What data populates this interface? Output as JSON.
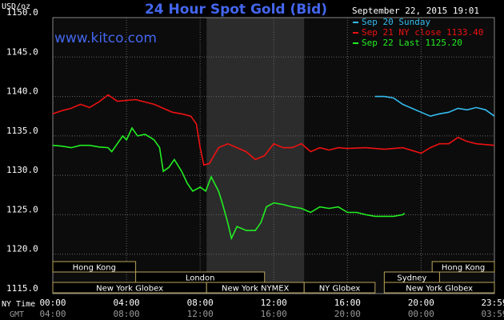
{
  "chart_data": {
    "type": "line",
    "title": "24 Hour Spot Gold (Bid)",
    "watermark": "www.kitco.com",
    "timestamp": "September 22, 2015 19:01",
    "y_label": "USD/oz",
    "x_label": "NY Time",
    "x2_label": "GMT",
    "xlim": [
      0,
      23.98
    ],
    "ylim": [
      1115,
      1150
    ],
    "yticks": [
      {
        "value": 1115,
        "label": "1115.0"
      },
      {
        "value": 1120,
        "label": "1120.0"
      },
      {
        "value": 1125,
        "label": "1125.0"
      },
      {
        "value": 1130,
        "label": "1130.0"
      },
      {
        "value": 1135,
        "label": "1135.0"
      },
      {
        "value": 1140,
        "label": "1140.0"
      },
      {
        "value": 1145,
        "label": "1145.0"
      },
      {
        "value": 1150,
        "label": "1150.0"
      }
    ],
    "xticks": [
      {
        "value": 0,
        "label": "00:00"
      },
      {
        "value": 4,
        "label": "04:00"
      },
      {
        "value": 8,
        "label": "08:00"
      },
      {
        "value": 12,
        "label": "12:00"
      },
      {
        "value": 16,
        "label": "16:00"
      },
      {
        "value": 20,
        "label": "20:00"
      },
      {
        "value": 23.98,
        "label": "23:59"
      }
    ],
    "x2ticks": [
      {
        "value": 0,
        "label": "04:00"
      },
      {
        "value": 4,
        "label": "08:00"
      },
      {
        "value": 8,
        "label": "12:00"
      },
      {
        "value": 12,
        "label": "16:00"
      },
      {
        "value": 16,
        "label": "20:00"
      },
      {
        "value": 20,
        "label": "00:00"
      },
      {
        "value": 23.98,
        "label": "03:59"
      }
    ],
    "grid": true,
    "session_rows": [
      [
        {
          "label": "Hong Kong",
          "start": 0,
          "end": 4.5
        },
        {
          "label": "Hong Kong",
          "start": 20.6,
          "end": 23.98
        }
      ],
      [
        {
          "label": "London",
          "start": 4.5,
          "end": 11.5
        },
        {
          "label": "Sydney",
          "start": 18,
          "end": 21
        }
      ],
      [
        {
          "label": "New York Globex",
          "start": 0,
          "end": 8.35
        },
        {
          "label": "New York NYMEX",
          "start": 8.35,
          "end": 13.65,
          "shade": true
        },
        {
          "label": "NY Globex",
          "start": 13.65,
          "end": 17.5
        },
        {
          "label": "New York Globex",
          "start": 18,
          "end": 23.98
        }
      ]
    ],
    "series": [
      {
        "name": "Sep 20 Sunday",
        "color": "#33bbee",
        "x": [
          17.5,
          18,
          18.5,
          19,
          19.5,
          20,
          20.5,
          21,
          21.5,
          22,
          22.5,
          23,
          23.5,
          23.98
        ],
        "values": [
          1140.0,
          1140.0,
          1139.8,
          1139.0,
          1138.5,
          1138.0,
          1137.5,
          1137.8,
          1138.0,
          1138.5,
          1138.3,
          1138.6,
          1138.3,
          1137.5
        ]
      },
      {
        "name": "Sep 21 NY close 1133.40",
        "color": "#ee1111",
        "x": [
          0,
          0.5,
          1,
          1.5,
          2,
          2.5,
          3,
          3.5,
          4,
          4.5,
          5,
          5.5,
          6,
          6.5,
          7,
          7.5,
          7.8,
          8,
          8.2,
          8.5,
          9,
          9.5,
          10,
          10.5,
          11,
          11.5,
          12,
          12.5,
          13,
          13.5,
          14,
          14.5,
          15,
          15.5,
          16,
          17,
          18,
          19,
          20,
          20.5,
          21,
          21.5,
          22,
          22.5,
          23,
          23.98
        ],
        "values": [
          1137.8,
          1138.2,
          1138.5,
          1139.0,
          1138.6,
          1139.3,
          1140.2,
          1139.4,
          1139.5,
          1139.6,
          1139.3,
          1139.0,
          1138.5,
          1138.0,
          1137.8,
          1137.5,
          1136.5,
          1133.5,
          1131.3,
          1131.5,
          1133.5,
          1134.0,
          1133.5,
          1133.0,
          1132.0,
          1132.5,
          1134.0,
          1133.5,
          1133.5,
          1134.0,
          1133.0,
          1133.5,
          1133.2,
          1133.5,
          1133.4,
          1133.5,
          1133.3,
          1133.5,
          1132.8,
          1133.5,
          1134.0,
          1134.0,
          1134.8,
          1134.3,
          1134.0,
          1133.8
        ]
      },
      {
        "name": "Sep 22 Last 1125.20",
        "color": "#22ee22",
        "x": [
          0,
          0.5,
          1,
          1.5,
          2,
          2.5,
          3,
          3.2,
          3.5,
          3.8,
          4,
          4.3,
          4.6,
          5,
          5.3,
          5.5,
          5.8,
          6,
          6.3,
          6.6,
          7,
          7.3,
          7.6,
          8,
          8.3,
          8.6,
          9,
          9.2,
          9.5,
          9.7,
          10,
          10.5,
          11,
          11.3,
          11.6,
          12,
          12.5,
          13,
          13.5,
          14,
          14.5,
          15,
          15.5,
          16,
          16.5,
          17,
          17.5,
          18,
          18.5,
          19,
          19.1
        ],
        "values": [
          1133.8,
          1133.7,
          1133.5,
          1133.8,
          1133.8,
          1133.6,
          1133.5,
          1133.0,
          1134.0,
          1135.0,
          1134.5,
          1136.0,
          1135.0,
          1135.2,
          1134.8,
          1134.5,
          1133.5,
          1130.5,
          1131.0,
          1132.0,
          1130.5,
          1129.0,
          1128.0,
          1128.5,
          1128.0,
          1129.8,
          1128.0,
          1126.5,
          1124.0,
          1122.0,
          1123.5,
          1123.0,
          1123.0,
          1124.0,
          1126.0,
          1126.5,
          1126.3,
          1126.0,
          1125.8,
          1125.3,
          1126.0,
          1125.8,
          1126.0,
          1125.3,
          1125.3,
          1125.0,
          1124.8,
          1124.8,
          1124.8,
          1125.0,
          1125.2
        ]
      }
    ]
  }
}
